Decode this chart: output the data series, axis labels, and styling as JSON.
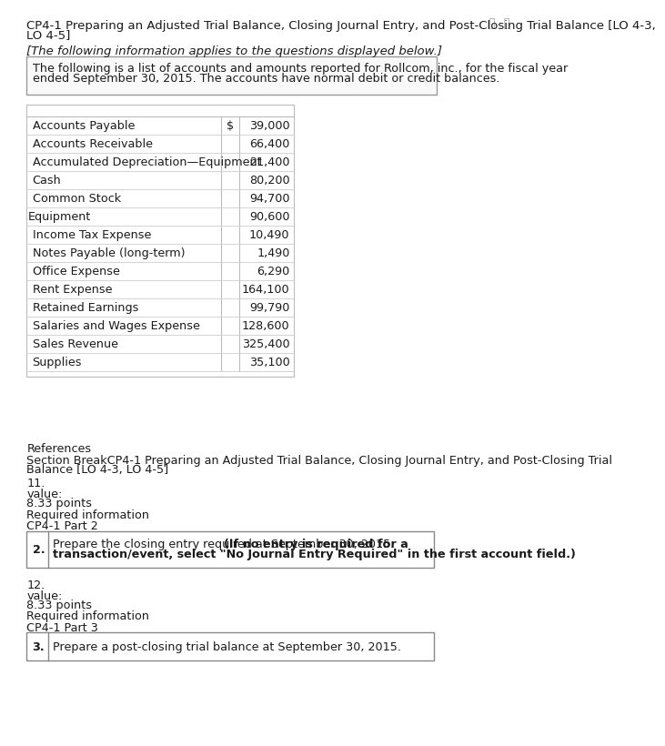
{
  "title_line1": "CP4-1 Preparing an Adjusted Trial Balance, Closing Journal Entry, and Post-Closing Trial Balance [LO 4-3,",
  "title_line2": "LO 4-5]",
  "italic_line": "[The following information applies to the questions displayed below.]",
  "box_line1": "The following is a list of accounts and amounts reported for Rollcom, inc., for the fiscal year",
  "box_line2": "ended September 30, 2015. The accounts have normal debit or credit balances.",
  "table_accounts": [
    "Accounts Payable",
    "Accounts Receivable",
    "Accumulated Depreciation—Equipment",
    "Cash",
    "Common Stock",
    "Equipment",
    "Income Tax Expense",
    "Notes Payable (long-term)",
    "Office Expense",
    "Rent Expense",
    "Retained Earnings",
    "Salaries and Wages Expense",
    "Sales Revenue",
    "Supplies"
  ],
  "table_dollar_sign": [
    "$",
    "",
    "",
    "",
    "",
    "",
    "",
    "",
    "",
    "",
    "",
    "",
    "",
    ""
  ],
  "table_values": [
    "39,000",
    "66,400",
    "21,400",
    "80,200",
    "94,700",
    "90,600",
    "10,490",
    "1,490",
    "6,290",
    "164,100",
    "99,790",
    "128,600",
    "325,400",
    "35,100"
  ],
  "indented": [
    true,
    true,
    true,
    true,
    true,
    false,
    true,
    true,
    true,
    true,
    true,
    true,
    true,
    true
  ],
  "references_label": "References",
  "section_line1": "Section BreakCP4-1 Preparing an Adjusted Trial Balance, Closing Journal Entry, and Post-Closing Trial",
  "section_line2": "Balance [LO 4-3, LO 4-5]",
  "number_11": "11.",
  "value_label": "value:",
  "points_label": "8.33 points",
  "req_info_label": "Required information",
  "part2_label": "CP4-1 Part 2",
  "box2_number": "2.",
  "box2_text_normal": "Prepare the closing entry required at September 30, 2015. ",
  "box2_bold_line1": "(If no entry is required for a",
  "box2_bold_line2": "transaction/event, select \"No Journal Entry Required\" in the first account field.)",
  "number_12": "12.",
  "value_label2": "value:",
  "points_label2": "8.33 points",
  "req_info_label2": "Required information",
  "part3_label": "CP4-1 Part 3",
  "box3_number": "3.",
  "box3_text": "Prepare a post-closing trial balance at September 30, 2015.",
  "bg_color": "#ffffff",
  "text_color": "#1a1a1a",
  "border_color": "#999999",
  "table_border_color": "#bbbbbb"
}
